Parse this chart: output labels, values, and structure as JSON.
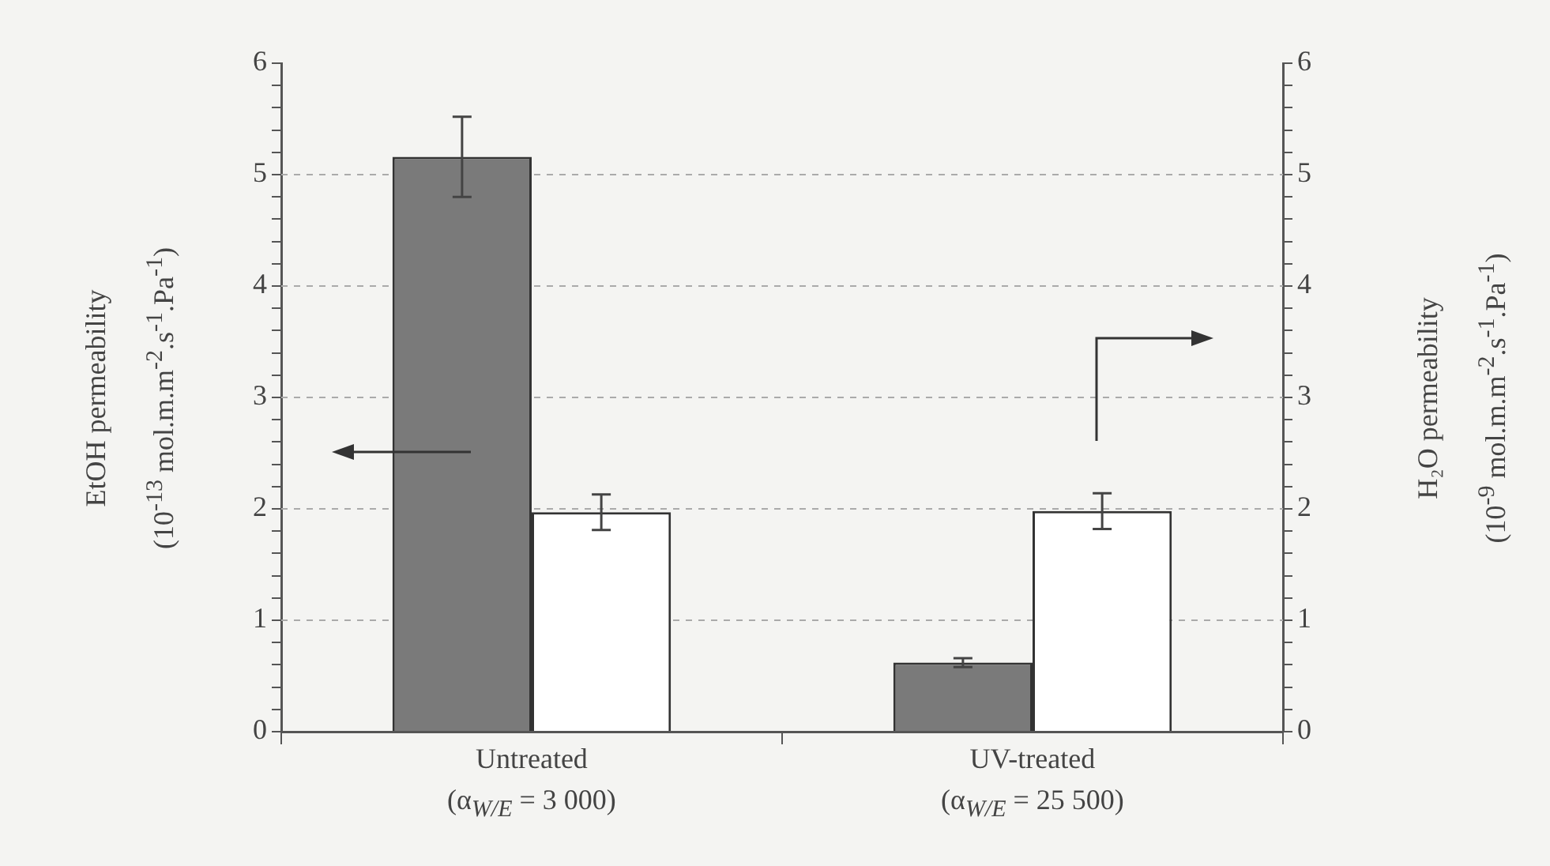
{
  "chart_data": {
    "type": "bar",
    "categories": [
      "Untreated\n(α$_{W/E}$ = 3 000)",
      "UV-treated\n(α$_{W/E}$ = 25 500)"
    ],
    "series": [
      {
        "color": "#7a7a7a",
        "values": [
          5.16,
          0.62
        ],
        "errors": [
          [
            4.8,
            5.52
          ],
          [
            0.58,
            0.66
          ]
        ]
      },
      {
        "color": "#ffffff",
        "axis": "y2",
        "values": [
          1.97,
          1.98
        ],
        "errors": [
          [
            1.81,
            2.13
          ],
          [
            1.82,
            2.14
          ]
        ]
      }
    ],
    "ylabel": "EtOH permeability\n(10$^{-13}$ mol.m.m$^{-2}$.s$^{-1}$.Pa$^{-1}$)",
    "y2label": "H₂O permeability\n(10$^{-9}$ mol.m.m$^{-2}$.s$^{-1}$.Pa$^{-1}$)",
    "ylim": [
      0,
      6
    ],
    "yticks": [
      0,
      {
        "value": 0.2,
        "label": null
      },
      {
        "value": 0.4,
        "label": null
      },
      {
        "value": 0.6,
        "label": null
      },
      {
        "value": 0.8,
        "label": null
      },
      1,
      {
        "value": 1.2,
        "label": null
      },
      {
        "value": 1.4,
        "label": null
      },
      {
        "value": 1.6,
        "label": null
      },
      {
        "value": 1.8,
        "label": null
      },
      2,
      {
        "value": 2.2,
        "label": null
      },
      {
        "value": 2.4,
        "label": null
      },
      {
        "value": 2.6,
        "label": null
      },
      {
        "value": 2.8,
        "label": null
      },
      3,
      {
        "value": 3.2,
        "label": null
      },
      {
        "value": 3.4,
        "label": null
      },
      {
        "value": 3.6,
        "label": null
      },
      {
        "value": 3.8,
        "label": null
      },
      4,
      {
        "value": 4.2,
        "label": null
      },
      {
        "value": 4.4,
        "label": null
      },
      {
        "value": 4.6,
        "label": null
      },
      {
        "value": 4.8,
        "label": null
      },
      5,
      {
        "value": 5.2,
        "label": null
      },
      {
        "value": 5.4,
        "label": null
      },
      {
        "value": 5.6,
        "label": null
      },
      {
        "value": 5.8,
        "label": null
      },
      6
    ],
    "y2lim": [
      0,
      6
    ],
    "y2ticks": [
      0,
      {
        "value": 0.2,
        "label": null
      },
      {
        "value": 0.4,
        "label": null
      },
      {
        "value": 0.6,
        "label": null
      },
      {
        "value": 0.8,
        "label": null
      },
      1,
      {
        "value": 1.2,
        "label": null
      },
      {
        "value": 1.4,
        "label": null
      },
      {
        "value": 1.6,
        "label": null
      },
      {
        "value": 1.8,
        "label": null
      },
      2,
      {
        "value": 2.2,
        "label": null
      },
      {
        "value": 2.4,
        "label": null
      },
      {
        "value": 2.6,
        "label": null
      },
      {
        "value": 2.8,
        "label": null
      },
      3,
      {
        "value": 3.2,
        "label": null
      },
      {
        "value": 3.4,
        "label": null
      },
      {
        "value": 3.6,
        "label": null
      },
      {
        "value": 3.8,
        "label": null
      },
      4,
      {
        "value": 4.2,
        "label": null
      },
      {
        "value": 4.4,
        "label": null
      },
      {
        "value": 4.6,
        "label": null
      },
      {
        "value": 4.8,
        "label": null
      },
      5,
      {
        "value": 5.2,
        "label": null
      },
      {
        "value": 5.4,
        "label": null
      },
      {
        "value": 5.6,
        "label": null
      },
      {
        "value": 5.8,
        "label": null
      },
      6
    ],
    "grid": "y",
    "legend": false
  }
}
